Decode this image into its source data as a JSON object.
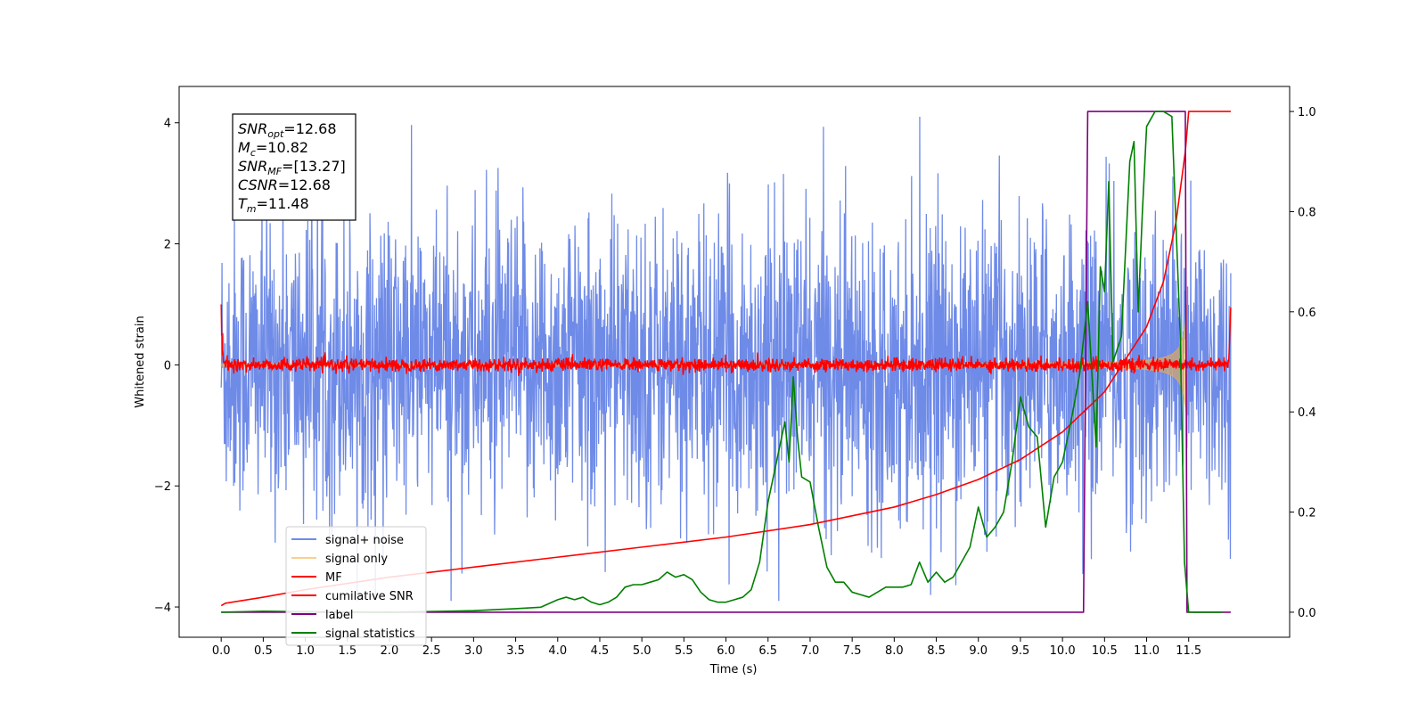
{
  "chart_data": {
    "type": "line",
    "xlabel": "Time (s)",
    "ylabel_left": "Whitened strain",
    "ylabel_right": "",
    "xlim": [
      -0.5,
      12.7
    ],
    "ylim_left": [
      -4.5,
      4.6
    ],
    "ylim_right": [
      -0.05,
      1.05
    ],
    "x_ticks": [
      "0.0",
      "0.5",
      "1.0",
      "1.5",
      "2.0",
      "2.5",
      "3.0",
      "3.5",
      "4.0",
      "4.5",
      "5.0",
      "5.5",
      "6.0",
      "6.5",
      "7.0",
      "7.5",
      "8.0",
      "8.5",
      "9.0",
      "9.5",
      "10.0",
      "10.5",
      "11.0",
      "11.5"
    ],
    "y_ticks_left": [
      "−4",
      "−2",
      "0",
      "2",
      "4"
    ],
    "y_ticks_right": [
      "0.0",
      "0.2",
      "0.4",
      "0.6",
      "0.8",
      "1.0"
    ],
    "legend_position": "lower-left",
    "grid": false,
    "annotation": [
      {
        "main": "SNR",
        "sub": "opt",
        "value": "=12.68"
      },
      {
        "main": "M",
        "sub": "c",
        "value": "=10.82"
      },
      {
        "main": "SNR",
        "sub": "MF",
        "value": "=[13.27]"
      },
      {
        "main": "CSNR",
        "sub": "",
        "value": "=12.68"
      },
      {
        "main": "T",
        "sub": "m",
        "value": "=11.48"
      }
    ],
    "series": [
      {
        "name": "signal+ noise",
        "color": "#6f8be8",
        "axis": "left",
        "kind": "noise",
        "envelope": {
          "x_start": 0.0,
          "x_end": 12.0,
          "typical_amplitude": 2.2,
          "peak_amplitude": 4.1,
          "min": -3.9,
          "max": 4.1
        }
      },
      {
        "name": "signal only",
        "color": "#f5b041",
        "axis": "left",
        "kind": "chirp",
        "envelope": {
          "x_start": 0.0,
          "x_end": 11.48,
          "amplitude_at_start": 0.02,
          "amplitude_at_end": 1.0
        }
      },
      {
        "name": "MF",
        "color": "#ff0000",
        "axis": "left",
        "kind": "noise",
        "envelope": {
          "x_start": 0.0,
          "x_end": 12.0,
          "typical_amplitude": 0.12,
          "start_value": 1.0,
          "end_value": 0.95
        }
      },
      {
        "name": "cumilative SNR",
        "color": "#ff0000",
        "axis": "right",
        "x": [
          0.0,
          0.05,
          0.5,
          1.0,
          2.0,
          3.0,
          4.0,
          5.0,
          6.0,
          7.0,
          8.0,
          8.5,
          9.0,
          9.5,
          10.0,
          10.5,
          11.0,
          11.2,
          11.35,
          11.46,
          11.5,
          12.0
        ],
        "y": [
          0.013,
          0.018,
          0.03,
          0.045,
          0.07,
          0.09,
          0.11,
          0.13,
          0.15,
          0.175,
          0.21,
          0.235,
          0.265,
          0.305,
          0.36,
          0.44,
          0.57,
          0.66,
          0.78,
          0.92,
          1.0,
          1.0
        ]
      },
      {
        "name": "label",
        "color": "#800080",
        "axis": "right",
        "x": [
          0.0,
          10.25,
          10.3,
          11.46,
          11.48,
          12.0
        ],
        "y": [
          0.0,
          0.0,
          1.0,
          1.0,
          0.0,
          0.0
        ]
      },
      {
        "name": "signal statistics",
        "color": "#008000",
        "axis": "right",
        "x": [
          0.0,
          0.5,
          1.0,
          2.0,
          3.0,
          3.5,
          3.8,
          4.0,
          4.1,
          4.2,
          4.3,
          4.4,
          4.5,
          4.6,
          4.7,
          4.8,
          4.9,
          5.0,
          5.1,
          5.2,
          5.3,
          5.4,
          5.5,
          5.6,
          5.7,
          5.8,
          5.9,
          6.0,
          6.1,
          6.2,
          6.3,
          6.4,
          6.5,
          6.6,
          6.7,
          6.75,
          6.8,
          6.85,
          6.9,
          7.0,
          7.1,
          7.2,
          7.3,
          7.4,
          7.5,
          7.6,
          7.7,
          7.8,
          7.9,
          8.0,
          8.1,
          8.2,
          8.3,
          8.4,
          8.5,
          8.6,
          8.7,
          8.8,
          8.9,
          9.0,
          9.1,
          9.2,
          9.3,
          9.4,
          9.5,
          9.6,
          9.7,
          9.8,
          9.9,
          10.0,
          10.1,
          10.2,
          10.3,
          10.4,
          10.45,
          10.5,
          10.55,
          10.6,
          10.7,
          10.8,
          10.85,
          10.9,
          10.95,
          11.0,
          11.1,
          11.2,
          11.3,
          11.4,
          11.45,
          11.5,
          11.55,
          11.6,
          11.9
        ],
        "y": [
          0.0,
          0.002,
          0.001,
          0.0,
          0.003,
          0.007,
          0.01,
          0.025,
          0.03,
          0.025,
          0.03,
          0.02,
          0.015,
          0.02,
          0.03,
          0.05,
          0.055,
          0.055,
          0.06,
          0.065,
          0.08,
          0.07,
          0.075,
          0.065,
          0.04,
          0.025,
          0.02,
          0.02,
          0.025,
          0.03,
          0.045,
          0.1,
          0.22,
          0.3,
          0.38,
          0.3,
          0.47,
          0.35,
          0.27,
          0.26,
          0.17,
          0.09,
          0.06,
          0.06,
          0.04,
          0.035,
          0.03,
          0.04,
          0.05,
          0.05,
          0.05,
          0.055,
          0.1,
          0.06,
          0.08,
          0.06,
          0.07,
          0.1,
          0.13,
          0.21,
          0.15,
          0.17,
          0.2,
          0.3,
          0.43,
          0.37,
          0.35,
          0.17,
          0.27,
          0.3,
          0.38,
          0.47,
          0.62,
          0.33,
          0.69,
          0.64,
          0.86,
          0.5,
          0.55,
          0.9,
          0.94,
          0.6,
          0.8,
          0.97,
          1.0,
          1.0,
          0.99,
          0.55,
          0.1,
          0.0,
          0.0,
          0.0,
          0.0
        ]
      }
    ]
  }
}
